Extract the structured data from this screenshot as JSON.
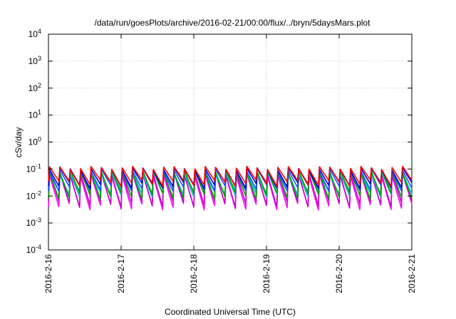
{
  "chart_data": {
    "type": "line",
    "title": "/data/run/goesPlots/archive/2016-02-21/00:00/flux/../bryn/5daysMars.plot",
    "xlabel": "Coordinated Universal Time (UTC)",
    "ylabel": "cSv/day",
    "yscale": "log",
    "ylim": [
      0.0001,
      10000
    ],
    "xlim": [
      "2016-2-16",
      "2016-2-21"
    ],
    "grid": true,
    "y_ticks": [
      {
        "base": "10",
        "exp": "-4"
      },
      {
        "base": "10",
        "exp": "-3"
      },
      {
        "base": "10",
        "exp": "-2"
      },
      {
        "base": "10",
        "exp": "-1"
      },
      {
        "base": "10",
        "exp": "0"
      },
      {
        "base": "10",
        "exp": "1"
      },
      {
        "base": "10",
        "exp": "2"
      },
      {
        "base": "10",
        "exp": "3"
      },
      {
        "base": "10",
        "exp": "4"
      }
    ],
    "x_ticks": [
      "2016-2-16",
      "2016-2-17",
      "2016-2-18",
      "2016-2-19",
      "2016-2-20",
      "2016-2-21"
    ],
    "cycles_per_day": 7,
    "series": [
      {
        "color": "#ff00ff",
        "peak": 0.06,
        "trough": 0.004
      },
      {
        "color": "#cc00cc",
        "peak": 0.07,
        "trough": 0.005
      },
      {
        "color": "#00bbbb",
        "peak": 0.075,
        "trough": 0.012
      },
      {
        "color": "#00cccc",
        "peak": 0.065,
        "trough": 0.015
      },
      {
        "color": "#00a000",
        "peak": 0.08,
        "trough": 0.01
      },
      {
        "color": "#2050ff",
        "peak": 0.09,
        "trough": 0.02
      },
      {
        "color": "#0000cc",
        "peak": 0.1,
        "trough": 0.025
      },
      {
        "color": "#ff0000",
        "peak": 0.11,
        "trough": 0.03
      }
    ]
  }
}
